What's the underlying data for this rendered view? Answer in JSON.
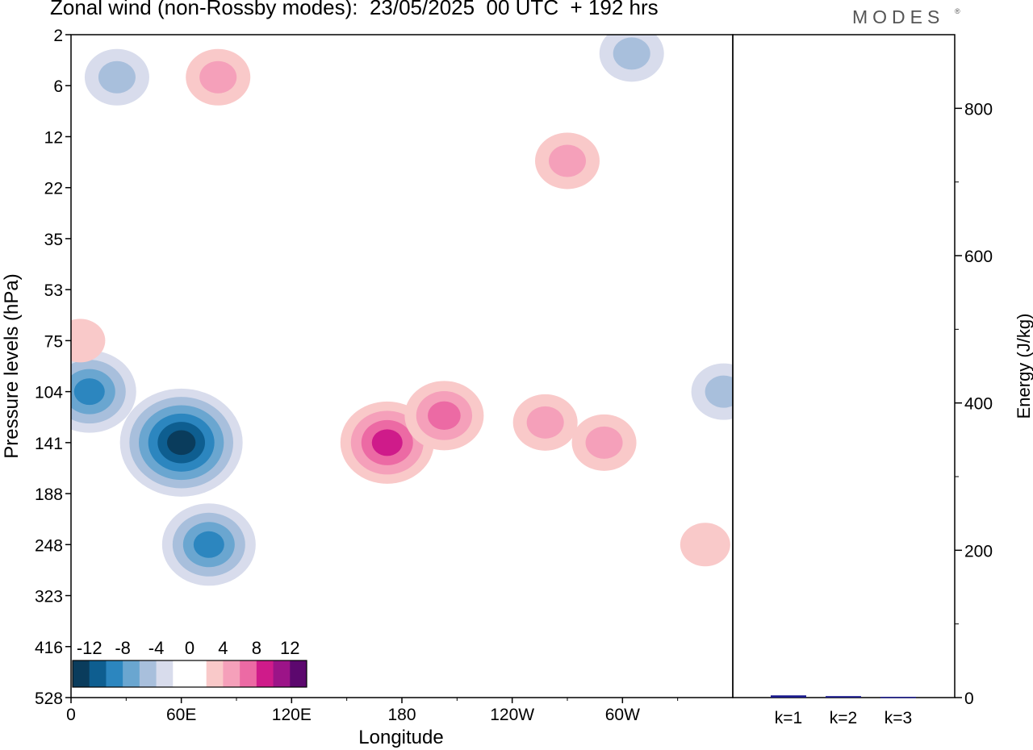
{
  "chart_data": [
    {
      "type": "heatmap",
      "title": "Zonal wind (non-Rossby modes):  23/05/2025  00 UTC  + 192 hrs",
      "xlabel": "Longitude",
      "ylabel": "Pressure levels (hPa)",
      "x_ticks": [
        "0",
        "60E",
        "120E",
        "180",
        "120W",
        "60W"
      ],
      "y_ticks": [
        "2",
        "6",
        "12",
        "22",
        "35",
        "53",
        "75",
        "104",
        "141",
        "188",
        "248",
        "323",
        "416",
        "528"
      ],
      "colorbar": {
        "labels": [
          "-12",
          "-8",
          "-4",
          "0",
          "4",
          "8",
          "12"
        ],
        "colors": [
          "#0a3c5c",
          "#0e5e90",
          "#2c86bf",
          "#6aa6d0",
          "#a8bfdc",
          "#d8dcec",
          "#ffffff",
          "#ffffff",
          "#f9c9c9",
          "#f5a0ba",
          "#ec6aa4",
          "#cf1b8a",
          "#9c1488",
          "#5c086e"
        ]
      },
      "features": [
        {
          "sign": "negative",
          "level": -14,
          "lon": 60,
          "hPa": 141
        },
        {
          "sign": "negative",
          "level": -10,
          "lon": 75,
          "hPa": 248
        },
        {
          "sign": "negative",
          "level": -10,
          "lon": 10,
          "hPa": 104
        },
        {
          "sign": "negative",
          "level": -6,
          "lon": 25,
          "hPa": 5
        },
        {
          "sign": "negative",
          "level": -6,
          "lon": 305,
          "hPa": 3
        },
        {
          "sign": "negative",
          "level": -6,
          "lon": 355,
          "hPa": 104
        },
        {
          "sign": "positive",
          "level": 10,
          "lon": 172,
          "hPa": 141
        },
        {
          "sign": "positive",
          "level": 8,
          "lon": 203,
          "hPa": 120
        },
        {
          "sign": "positive",
          "level": 6,
          "lon": 258,
          "hPa": 125
        },
        {
          "sign": "positive",
          "level": 6,
          "lon": 290,
          "hPa": 141
        },
        {
          "sign": "positive",
          "level": 6,
          "lon": 270,
          "hPa": 16
        },
        {
          "sign": "positive",
          "level": 6,
          "lon": 80,
          "hPa": 5
        },
        {
          "sign": "positive",
          "level": 4,
          "lon": 5,
          "hPa": 75
        },
        {
          "sign": "positive",
          "level": 4,
          "lon": 345,
          "hPa": 248
        }
      ]
    },
    {
      "type": "bar",
      "ylabel": "Energy (J/kg)",
      "categories": [
        "k=1",
        "k=2",
        "k=3"
      ],
      "values": [
        3,
        2,
        1
      ],
      "ylim": [
        0,
        900
      ],
      "y_ticks": [
        "0",
        "200",
        "400",
        "600",
        "800"
      ],
      "colors": [
        "#1a1a8c",
        "#1a1a8c",
        "#1a1a8c"
      ]
    }
  ],
  "logo": "MODES",
  "logo_mark": "®"
}
